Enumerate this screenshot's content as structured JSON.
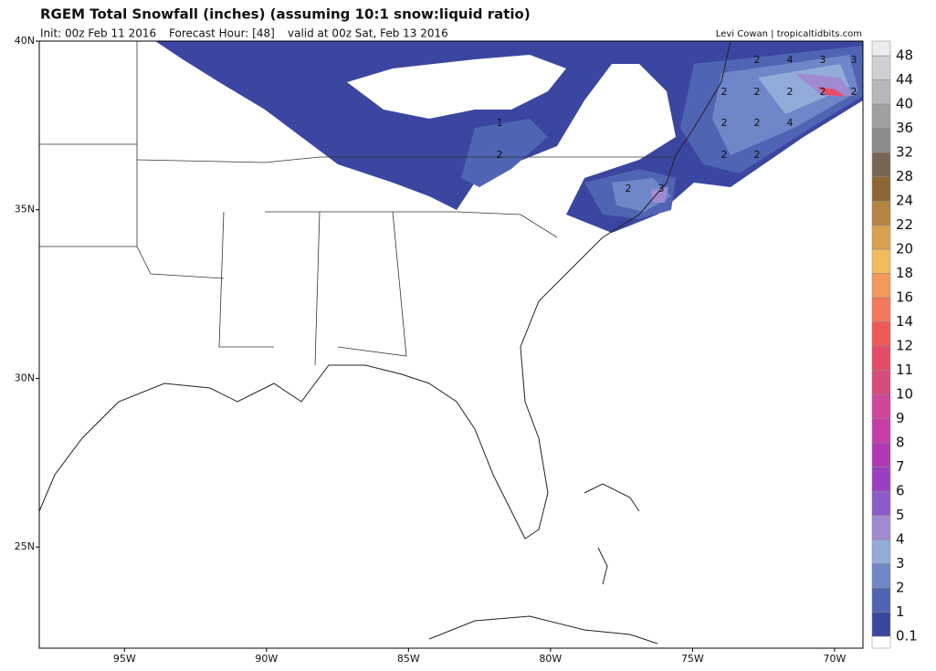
{
  "header": {
    "title": "RGEM Total Snowfall (inches) (assuming 10:1 snow:liquid ratio)",
    "init": "Init: 00z Feb 11 2016",
    "forecast_hour": "Forecast Hour: [48]",
    "valid": "valid at 00z Sat, Feb 13 2016",
    "credit": "Levi Cowan | tropicaltidbits.com"
  },
  "map": {
    "lon_range": [
      -98,
      -69
    ],
    "lat_range": [
      22,
      40
    ],
    "lon_ticks": [
      {
        "value": -95,
        "label": "95W"
      },
      {
        "value": -90,
        "label": "90W"
      },
      {
        "value": -85,
        "label": "85W"
      },
      {
        "value": -80,
        "label": "80W"
      },
      {
        "value": -75,
        "label": "75W"
      },
      {
        "value": -70,
        "label": "70W"
      }
    ],
    "lat_ticks": [
      {
        "value": 40,
        "label": "40N"
      },
      {
        "value": 35,
        "label": "35N"
      },
      {
        "value": 30,
        "label": "30N"
      },
      {
        "value": 25,
        "label": "25N"
      }
    ],
    "contour_labels": [
      2,
      4,
      3,
      3,
      2,
      2,
      2,
      2,
      2,
      2,
      2,
      4,
      2,
      2,
      1,
      2,
      2,
      3
    ]
  },
  "colorbar": {
    "levels": [
      0.1,
      1,
      2,
      3,
      4,
      5,
      6,
      7,
      8,
      9,
      10,
      11,
      12,
      14,
      16,
      18,
      20,
      22,
      24,
      28,
      32,
      36,
      40,
      44,
      48
    ],
    "colors": [
      "#3b46a0",
      "#5064b4",
      "#6f86c8",
      "#93abd8",
      "#a08ad2",
      "#8c5ccc",
      "#9b3fc0",
      "#b03ab4",
      "#c83ca8",
      "#d0449c",
      "#d84c7c",
      "#e44c68",
      "#f05858",
      "#f4785a",
      "#f49a58",
      "#f4bc60",
      "#d8a050",
      "#b48440",
      "#8c6634",
      "#786654",
      "#8c8c8c",
      "#a0a0a0",
      "#b8b8bc",
      "#d0d0d4",
      "#ececf0"
    ]
  }
}
